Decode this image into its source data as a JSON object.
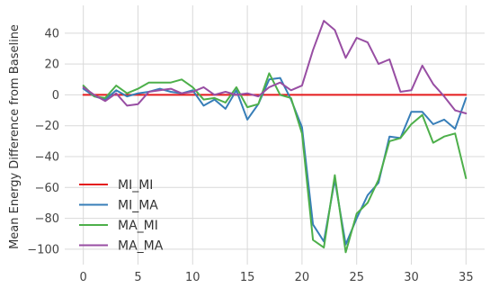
{
  "chart_data": {
    "type": "line",
    "title": "",
    "xlabel": "",
    "ylabel": "Mean Energy Difference from Baseline",
    "xlim": [
      -1.7,
      36.7
    ],
    "ylim": [
      -110,
      58
    ],
    "xticks": [
      0,
      5,
      10,
      15,
      20,
      25,
      30,
      35
    ],
    "yticks": [
      -100,
      -80,
      -60,
      -40,
      -20,
      0,
      20,
      40
    ],
    "grid": true,
    "legend_position": "lower-left",
    "x": [
      0,
      1,
      2,
      3,
      4,
      5,
      6,
      7,
      8,
      9,
      10,
      11,
      12,
      13,
      14,
      15,
      16,
      17,
      18,
      19,
      20,
      21,
      22,
      23,
      24,
      25,
      26,
      27,
      28,
      29,
      30,
      31,
      32,
      33,
      34,
      35
    ],
    "series": [
      {
        "name": "MI_MI",
        "color": "#e41a1c",
        "values": [
          0,
          0,
          0,
          0,
          0,
          0,
          0,
          0,
          0,
          0,
          0,
          0,
          0,
          0,
          0,
          0,
          0,
          0,
          0,
          0,
          0,
          0,
          0,
          0,
          0,
          0,
          0,
          0,
          0,
          0,
          0,
          0,
          0,
          0,
          0,
          0
        ]
      },
      {
        "name": "MI_MA",
        "color": "#377eb8",
        "values": [
          4,
          -1,
          -3,
          3,
          -1,
          1,
          2,
          4,
          2,
          1,
          3,
          -7,
          -3,
          -9,
          3,
          -16,
          -6,
          10,
          11,
          -3,
          -21,
          -84,
          -95,
          -55,
          -97,
          -80,
          -65,
          -57,
          -27,
          -28,
          -11,
          -11,
          -19,
          -16,
          -22,
          -2
        ]
      },
      {
        "name": "MA_MI",
        "color": "#4daf4a",
        "values": [
          6,
          -1,
          -2,
          6,
          1,
          4,
          8,
          8,
          8,
          10,
          5,
          -3,
          -2,
          -5,
          5,
          -8,
          -6,
          14,
          0,
          -2,
          -25,
          -94,
          -99,
          -52,
          -102,
          -77,
          -70,
          -55,
          -30,
          -28,
          -19,
          -13,
          -31,
          -27,
          -25,
          -54
        ]
      },
      {
        "name": "MA_MA",
        "color": "#984ea3",
        "values": [
          5,
          0,
          -4,
          1,
          -7,
          -6,
          2,
          3,
          4,
          1,
          2,
          5,
          0,
          2,
          0,
          1,
          -1,
          5,
          8,
          3,
          6,
          29,
          48,
          42,
          24,
          37,
          34,
          20,
          23,
          2,
          3,
          19,
          7,
          -1,
          -10,
          -12
        ]
      }
    ]
  }
}
